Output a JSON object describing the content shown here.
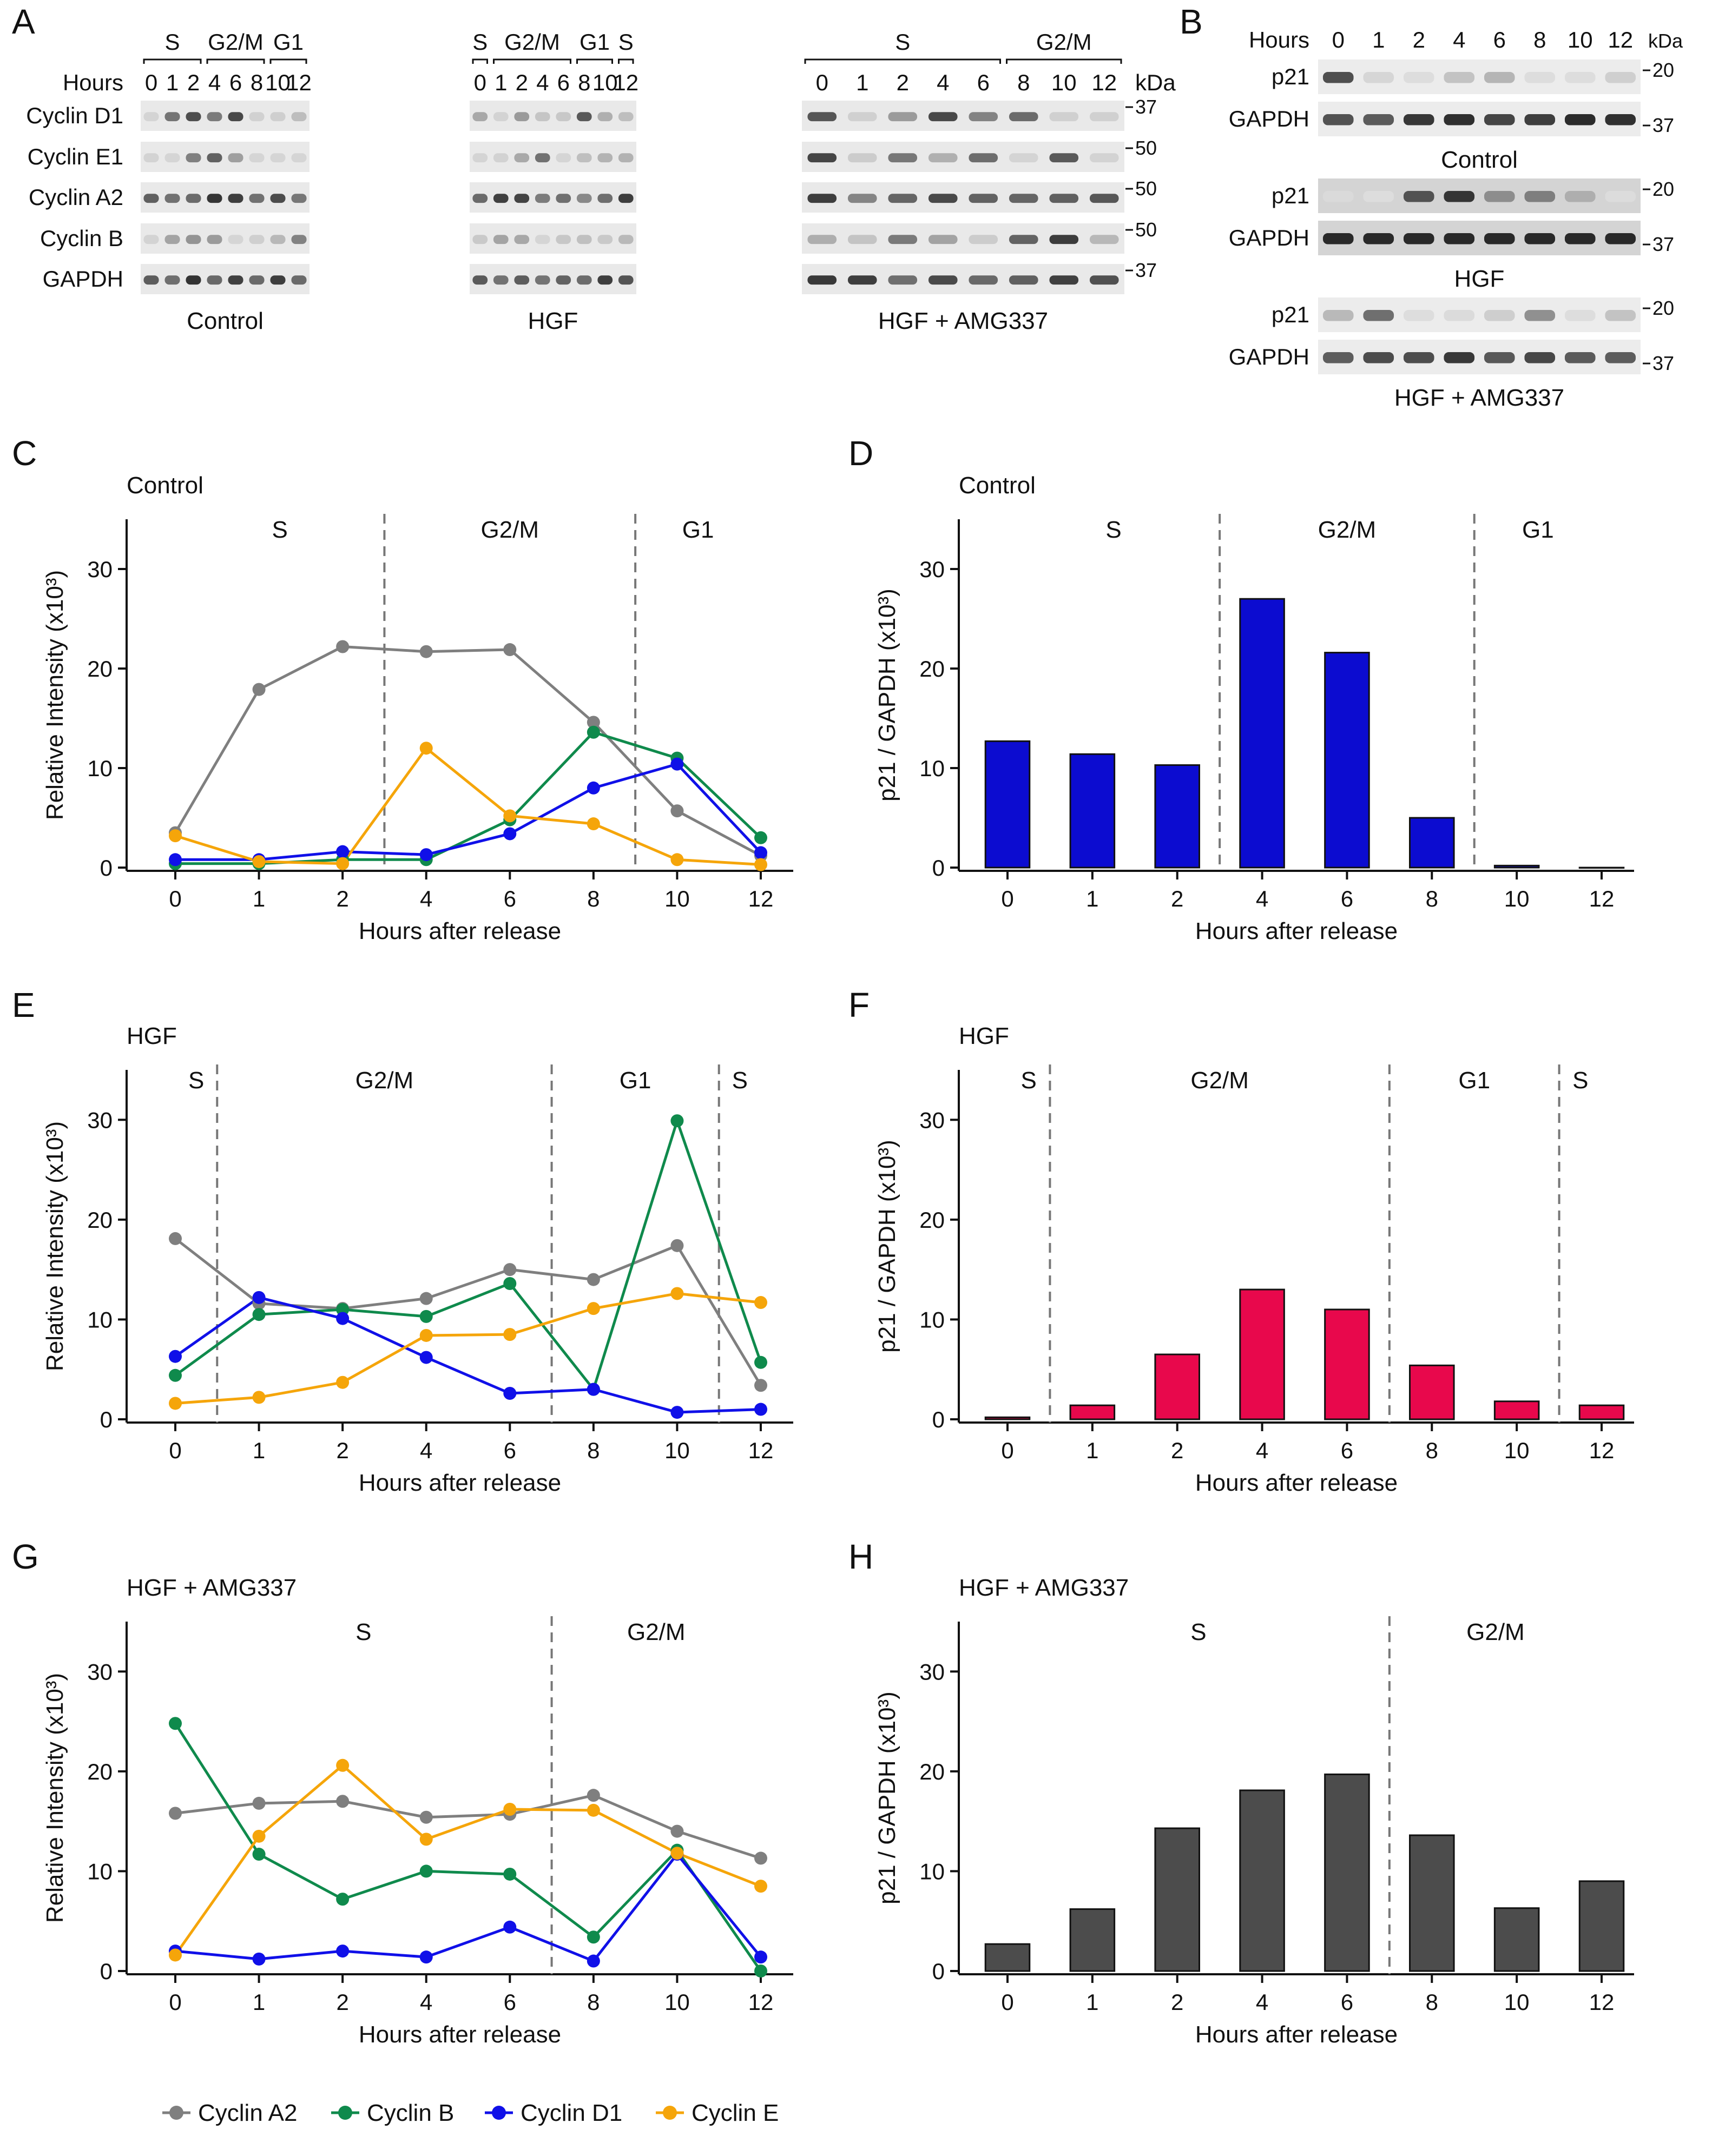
{
  "panel_letters": {
    "A": "A",
    "B": "B",
    "C": "C",
    "D": "D",
    "E": "E",
    "F": "F",
    "G": "G",
    "H": "H"
  },
  "blot_a": {
    "hours_label": "Hours",
    "kda_label": "kDa",
    "groups": [
      {
        "name": "Control",
        "phases": [
          {
            "name": "S",
            "lanes": [
              0,
              1,
              2
            ]
          },
          {
            "name": "G2/M",
            "lanes": [
              3,
              4,
              5
            ]
          },
          {
            "name": "G1",
            "lanes": [
              6,
              7
            ]
          }
        ],
        "hours": [
          "0",
          "1",
          "2",
          "4",
          "6",
          "8",
          "10",
          "12"
        ]
      },
      {
        "name": "HGF",
        "phases": [
          {
            "name": "S",
            "lanes": [
              0
            ]
          },
          {
            "name": "G2/M",
            "lanes": [
              1,
              2,
              3,
              4
            ]
          },
          {
            "name": "G1",
            "lanes": [
              5,
              6
            ]
          },
          {
            "name": "S",
            "lanes": [
              7
            ]
          }
        ],
        "hours": [
          "0",
          "1",
          "2",
          "4",
          "6",
          "8",
          "10",
          "12"
        ]
      },
      {
        "name": "HGF + AMG337",
        "phases": [
          {
            "name": "S",
            "lanes": [
              0,
              1,
              2,
              3,
              4
            ]
          },
          {
            "name": "G2/M",
            "lanes": [
              5,
              6,
              7
            ]
          }
        ],
        "hours": [
          "0",
          "1",
          "2",
          "4",
          "6",
          "8",
          "10",
          "12"
        ]
      }
    ],
    "rows": [
      {
        "label": "Cyclin D1",
        "kda": "37"
      },
      {
        "label": "Cyclin E1",
        "kda": "50"
      },
      {
        "label": "Cyclin A2",
        "kda": "50"
      },
      {
        "label": "Cyclin B",
        "kda": "50"
      },
      {
        "label": "GAPDH",
        "kda": "37"
      }
    ]
  },
  "blot_b": {
    "hours_label": "Hours",
    "kda_label": "kDa",
    "hours": [
      "0",
      "1",
      "2",
      "4",
      "6",
      "8",
      "10",
      "12"
    ],
    "blocks": [
      {
        "condition": "Control",
        "rows": [
          {
            "label": "p21",
            "kda": "20"
          },
          {
            "label": "GAPDH",
            "kda": "37"
          }
        ]
      },
      {
        "condition": "HGF",
        "rows": [
          {
            "label": "p21",
            "kda": "20"
          },
          {
            "label": "GAPDH",
            "kda": "37"
          }
        ]
      },
      {
        "condition": "HGF + AMG337",
        "rows": [
          {
            "label": "p21",
            "kda": "20"
          },
          {
            "label": "GAPDH",
            "kda": "37"
          }
        ]
      }
    ]
  },
  "legend": {
    "items": [
      {
        "label": "Cyclin A2",
        "color": "#7f7f7f"
      },
      {
        "label": "Cyclin B",
        "color": "#0f8a4c"
      },
      {
        "label": "Cyclin D1",
        "color": "#1010e8"
      },
      {
        "label": "Cyclin E",
        "color": "#f5a50a"
      }
    ]
  },
  "chart_data": [
    {
      "id": "C",
      "type": "line",
      "title": "Control",
      "xlabel": "Hours after release",
      "ylabel": "Relative Intensity (x10³)",
      "categories": [
        "0",
        "1",
        "2",
        "4",
        "6",
        "8",
        "10",
        "12"
      ],
      "ylim": [
        0,
        35
      ],
      "yticks": [
        "0",
        "10",
        "20",
        "30"
      ],
      "phases": [
        {
          "label": "S",
          "start": 0,
          "end": 2.5
        },
        {
          "label": "G2/M",
          "start": 2.5,
          "end": 5.5
        },
        {
          "label": "G1",
          "start": 5.5,
          "end": 7
        }
      ],
      "series": [
        {
          "name": "Cyclin A2",
          "color": "#7f7f7f",
          "values": [
            3.5,
            17.9,
            22.2,
            21.7,
            21.9,
            14.6,
            5.7,
            1.2
          ]
        },
        {
          "name": "Cyclin B",
          "color": "#0f8a4c",
          "values": [
            0.4,
            0.4,
            0.8,
            0.8,
            4.8,
            13.6,
            11.0,
            3.0
          ]
        },
        {
          "name": "Cyclin D1",
          "color": "#1010e8",
          "values": [
            0.8,
            0.8,
            1.6,
            1.3,
            3.4,
            8.0,
            10.4,
            1.5
          ]
        },
        {
          "name": "Cyclin E",
          "color": "#f5a50a",
          "values": [
            3.2,
            0.6,
            0.4,
            12.0,
            5.2,
            4.4,
            0.8,
            0.3
          ]
        }
      ]
    },
    {
      "id": "D",
      "type": "bar",
      "title": "Control",
      "xlabel": "Hours after release",
      "ylabel": "p21 / GAPDH (x10³)",
      "categories": [
        "0",
        "1",
        "2",
        "4",
        "6",
        "8",
        "10",
        "12"
      ],
      "ylim": [
        0,
        35
      ],
      "yticks": [
        "0",
        "10",
        "20",
        "30"
      ],
      "phases": [
        {
          "label": "S",
          "start": 0,
          "end": 2.5
        },
        {
          "label": "G2/M",
          "start": 2.5,
          "end": 5.5
        },
        {
          "label": "G1",
          "start": 5.5,
          "end": 7
        }
      ],
      "color": "#0c0cd0",
      "values": [
        12.7,
        11.4,
        10.3,
        27.0,
        21.6,
        5.0,
        0.2,
        0.0
      ]
    },
    {
      "id": "E",
      "type": "line",
      "title": "HGF",
      "xlabel": "Hours after release",
      "ylabel": "Relative Intensity (x10³)",
      "categories": [
        "0",
        "1",
        "2",
        "4",
        "6",
        "8",
        "10",
        "12"
      ],
      "ylim": [
        0,
        35
      ],
      "yticks": [
        "0",
        "10",
        "20",
        "30"
      ],
      "phases": [
        {
          "label": "S",
          "start": 0,
          "end": 0.5
        },
        {
          "label": "G2/M",
          "start": 0.5,
          "end": 4.5
        },
        {
          "label": "G1",
          "start": 4.5,
          "end": 6.5
        },
        {
          "label": "S",
          "start": 6.5,
          "end": 7
        }
      ],
      "series": [
        {
          "name": "Cyclin A2",
          "color": "#7f7f7f",
          "values": [
            18.1,
            11.6,
            11.1,
            12.1,
            15.0,
            14.0,
            17.4,
            3.4
          ]
        },
        {
          "name": "Cyclin B",
          "color": "#0f8a4c",
          "values": [
            4.4,
            10.5,
            11.0,
            10.3,
            13.6,
            3.0,
            29.9,
            5.7
          ]
        },
        {
          "name": "Cyclin D1",
          "color": "#1010e8",
          "values": [
            6.3,
            12.2,
            10.1,
            6.2,
            2.6,
            3.0,
            0.7,
            1.0
          ]
        },
        {
          "name": "Cyclin E",
          "color": "#f5a50a",
          "values": [
            1.6,
            2.2,
            3.7,
            8.4,
            8.5,
            11.1,
            12.6,
            11.7
          ]
        }
      ]
    },
    {
      "id": "F",
      "type": "bar",
      "title": "HGF",
      "xlabel": "Hours after release",
      "ylabel": "p21 / GAPDH (x10³)",
      "categories": [
        "0",
        "1",
        "2",
        "4",
        "6",
        "8",
        "10",
        "12"
      ],
      "ylim": [
        0,
        35
      ],
      "yticks": [
        "0",
        "10",
        "20",
        "30"
      ],
      "phases": [
        {
          "label": "S",
          "start": 0,
          "end": 0.5
        },
        {
          "label": "G2/M",
          "start": 0.5,
          "end": 4.5
        },
        {
          "label": "G1",
          "start": 4.5,
          "end": 6.5
        },
        {
          "label": "S",
          "start": 6.5,
          "end": 7
        }
      ],
      "color": "#e8084c",
      "values": [
        0.2,
        1.4,
        6.5,
        13.0,
        11.0,
        5.4,
        1.8,
        1.4
      ]
    },
    {
      "id": "G",
      "type": "line",
      "title": "HGF + AMG337",
      "xlabel": "Hours after release",
      "ylabel": "Relative Intensity (x10³)",
      "categories": [
        "0",
        "1",
        "2",
        "4",
        "6",
        "8",
        "10",
        "12"
      ],
      "ylim": [
        0,
        35
      ],
      "yticks": [
        "0",
        "10",
        "20",
        "30"
      ],
      "phases": [
        {
          "label": "S",
          "start": 0,
          "end": 4.5
        },
        {
          "label": "G2/M",
          "start": 4.5,
          "end": 7
        }
      ],
      "series": [
        {
          "name": "Cyclin A2",
          "color": "#7f7f7f",
          "values": [
            15.8,
            16.8,
            17.0,
            15.4,
            15.7,
            17.6,
            14.0,
            11.3
          ]
        },
        {
          "name": "Cyclin B",
          "color": "#0f8a4c",
          "values": [
            24.8,
            11.7,
            7.2,
            10.0,
            9.7,
            3.4,
            12.1,
            0.0
          ]
        },
        {
          "name": "Cyclin D1",
          "color": "#1010e8",
          "values": [
            2.0,
            1.2,
            2.0,
            1.4,
            4.4,
            1.0,
            11.7,
            1.4
          ]
        },
        {
          "name": "Cyclin E",
          "color": "#f5a50a",
          "values": [
            1.6,
            13.5,
            20.6,
            13.2,
            16.2,
            16.1,
            11.8,
            8.5
          ]
        }
      ]
    },
    {
      "id": "H",
      "type": "bar",
      "title": "HGF + AMG337",
      "xlabel": "Hours after release",
      "ylabel": "p21 / GAPDH (x10³)",
      "categories": [
        "0",
        "1",
        "2",
        "4",
        "6",
        "8",
        "10",
        "12"
      ],
      "ylim": [
        0,
        35
      ],
      "yticks": [
        "0",
        "10",
        "20",
        "30"
      ],
      "phases": [
        {
          "label": "S",
          "start": 0,
          "end": 4.5
        },
        {
          "label": "G2/M",
          "start": 4.5,
          "end": 7
        }
      ],
      "color": "#4c4c4c",
      "values": [
        2.7,
        6.2,
        14.3,
        18.1,
        19.7,
        13.6,
        6.3,
        9.0
      ]
    }
  ]
}
